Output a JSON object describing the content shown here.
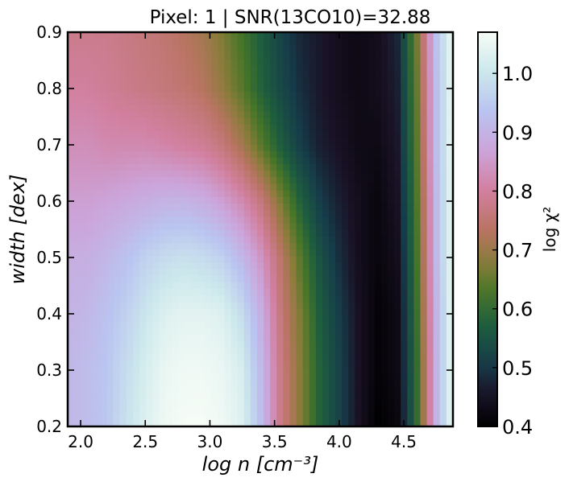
{
  "chart_data": {
    "type": "heatmap",
    "title": "Pixel: 1 | SNR(13CO10)=32.88",
    "xlabel": "log n [cm⁻³]",
    "ylabel": "width [dex]",
    "xlim": [
      1.9,
      4.88
    ],
    "ylim": [
      0.2,
      0.9
    ],
    "xticks": [
      "2.0",
      "2.5",
      "3.0",
      "3.5",
      "4.0",
      "4.5"
    ],
    "xtick_values": [
      2.0,
      2.5,
      3.0,
      3.5,
      4.0,
      4.5
    ],
    "yticks": [
      "0.2",
      "0.3",
      "0.4",
      "0.5",
      "0.6",
      "0.7",
      "0.8",
      "0.9"
    ],
    "ytick_values": [
      0.2,
      0.3,
      0.4,
      0.5,
      0.6,
      0.7,
      0.8,
      0.9
    ],
    "colorbar": {
      "label": "log χ²",
      "range": [
        0.4,
        1.07
      ],
      "ticks": [
        "0.4",
        "0.5",
        "0.6",
        "0.7",
        "0.8",
        "0.9",
        "1.0"
      ],
      "tick_values": [
        0.4,
        0.5,
        0.6,
        0.7,
        0.8,
        0.9,
        1.0
      ],
      "colormap": "cubehelix"
    },
    "grid": false,
    "grid_x": [
      1.9,
      2.05,
      2.2,
      2.35,
      2.5,
      2.65,
      2.8,
      2.95,
      3.1,
      3.25,
      3.4,
      3.55,
      3.7,
      3.85,
      4.0,
      4.15,
      4.3,
      4.45,
      4.6,
      4.75,
      4.88
    ],
    "grid_y": [
      0.2,
      0.3,
      0.4,
      0.5,
      0.6,
      0.7,
      0.8,
      0.9
    ],
    "z": [
      [
        0.91,
        0.92,
        0.94,
        0.99,
        1.03,
        1.06,
        1.07,
        1.07,
        1.06,
        1.03,
        0.92,
        0.77,
        0.68,
        0.58,
        0.52,
        0.45,
        0.4,
        0.42,
        0.6,
        0.9,
        1.06
      ],
      [
        0.91,
        0.92,
        0.94,
        0.98,
        1.02,
        1.05,
        1.06,
        1.06,
        1.05,
        1.02,
        0.91,
        0.77,
        0.68,
        0.58,
        0.52,
        0.45,
        0.41,
        0.43,
        0.6,
        0.9,
        1.06
      ],
      [
        0.9,
        0.91,
        0.93,
        0.96,
        1.0,
        1.03,
        1.04,
        1.04,
        1.03,
        0.98,
        0.89,
        0.76,
        0.67,
        0.57,
        0.51,
        0.45,
        0.41,
        0.43,
        0.61,
        0.9,
        1.06
      ],
      [
        0.89,
        0.89,
        0.91,
        0.93,
        0.96,
        0.98,
        0.99,
        0.98,
        0.96,
        0.91,
        0.84,
        0.74,
        0.64,
        0.55,
        0.49,
        0.44,
        0.42,
        0.44,
        0.62,
        0.91,
        1.06
      ],
      [
        0.86,
        0.86,
        0.87,
        0.88,
        0.89,
        0.9,
        0.9,
        0.89,
        0.86,
        0.82,
        0.76,
        0.67,
        0.58,
        0.51,
        0.47,
        0.44,
        0.42,
        0.45,
        0.63,
        0.91,
        1.06
      ],
      [
        0.83,
        0.83,
        0.82,
        0.82,
        0.82,
        0.81,
        0.8,
        0.79,
        0.76,
        0.71,
        0.64,
        0.57,
        0.51,
        0.47,
        0.45,
        0.43,
        0.43,
        0.46,
        0.64,
        0.92,
        1.06
      ],
      [
        0.8,
        0.8,
        0.79,
        0.78,
        0.77,
        0.76,
        0.75,
        0.73,
        0.69,
        0.64,
        0.58,
        0.53,
        0.49,
        0.46,
        0.44,
        0.43,
        0.44,
        0.47,
        0.65,
        0.92,
        1.06
      ],
      [
        0.78,
        0.78,
        0.78,
        0.77,
        0.76,
        0.75,
        0.73,
        0.71,
        0.67,
        0.62,
        0.57,
        0.52,
        0.48,
        0.46,
        0.44,
        0.43,
        0.44,
        0.48,
        0.66,
        0.93,
        1.06
      ]
    ]
  }
}
